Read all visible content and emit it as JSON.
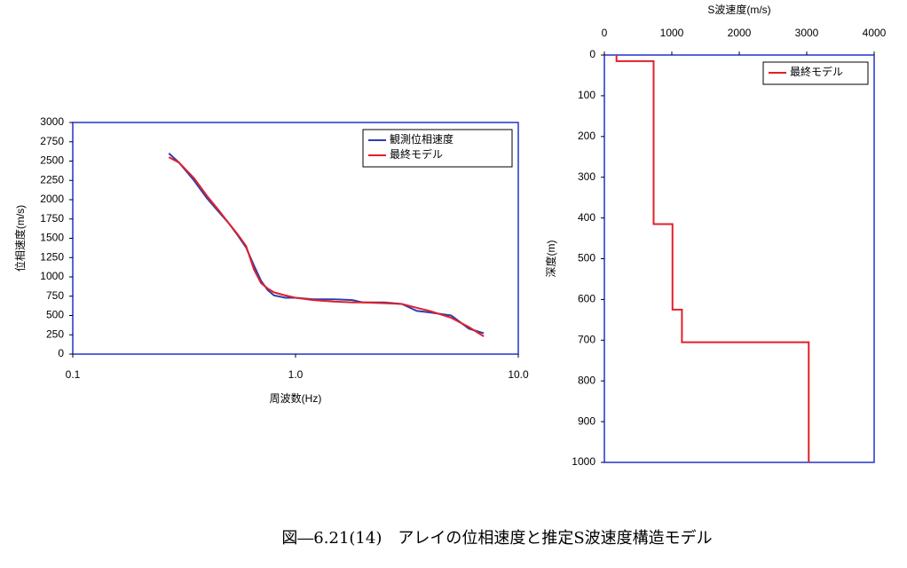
{
  "chart_data": [
    {
      "type": "line",
      "xscale": "log",
      "xlabel": "周波数(Hz)",
      "ylabel": "位相速度(m/s)",
      "xlim": [
        0.1,
        10
      ],
      "xticks": [
        0.1,
        {
          "value": 1,
          "label": "1.0"
        },
        {
          "value": 10,
          "label": "10.0"
        }
      ],
      "ylim": [
        0,
        3000
      ],
      "yticks": [
        0,
        250,
        500,
        750,
        1000,
        1250,
        1500,
        1750,
        2000,
        2250,
        2500,
        2750,
        3000
      ],
      "legend": "top-right",
      "grid": false,
      "x": [
        0.27,
        0.3,
        0.35,
        0.4,
        0.45,
        0.5,
        0.55,
        0.6,
        0.65,
        0.7,
        0.75,
        0.8,
        0.9,
        1.0,
        1.2,
        1.5,
        1.8,
        2,
        2.5,
        3,
        3.5,
        4,
        5,
        6,
        7
      ],
      "series": [
        {
          "name": "観測位相速度",
          "color": "#2b3fb0",
          "values": [
            2600,
            2480,
            2250,
            2020,
            1850,
            1700,
            1540,
            1380,
            1150,
            950,
            830,
            760,
            730,
            730,
            710,
            710,
            700,
            670,
            670,
            650,
            560,
            540,
            500,
            330,
            270
          ]
        },
        {
          "name": "最終モデル",
          "color": "#e0202a",
          "values": [
            2550,
            2480,
            2280,
            2050,
            1870,
            1700,
            1550,
            1400,
            1100,
            920,
            850,
            800,
            760,
            730,
            700,
            680,
            670,
            670,
            660,
            650,
            600,
            560,
            470,
            350,
            230
          ]
        }
      ]
    },
    {
      "type": "line",
      "xaxis": "top",
      "yinvert": true,
      "xlabel": "S波速度(m/s)",
      "ylabel": "深度(m)",
      "xlim": [
        0,
        4000
      ],
      "xticks": [
        0,
        1000,
        2000,
        3000,
        4000
      ],
      "ylim": [
        0,
        1000
      ],
      "yticks": [
        0,
        100,
        200,
        300,
        400,
        500,
        600,
        700,
        800,
        900,
        1000
      ],
      "legend": "top-right",
      "grid": false,
      "series": [
        {
          "name": "最終モデル",
          "color": "#e0202a",
          "x": [
            180,
            180,
            730,
            730,
            1010,
            1010,
            1150,
            1150,
            3030,
            3030
          ],
          "values": [
            0,
            15,
            15,
            415,
            415,
            625,
            625,
            705,
            705,
            1000
          ]
        }
      ]
    }
  ],
  "caption": "図―6.21(14)　アレイの位相速度と推定S波速度構造モデル"
}
